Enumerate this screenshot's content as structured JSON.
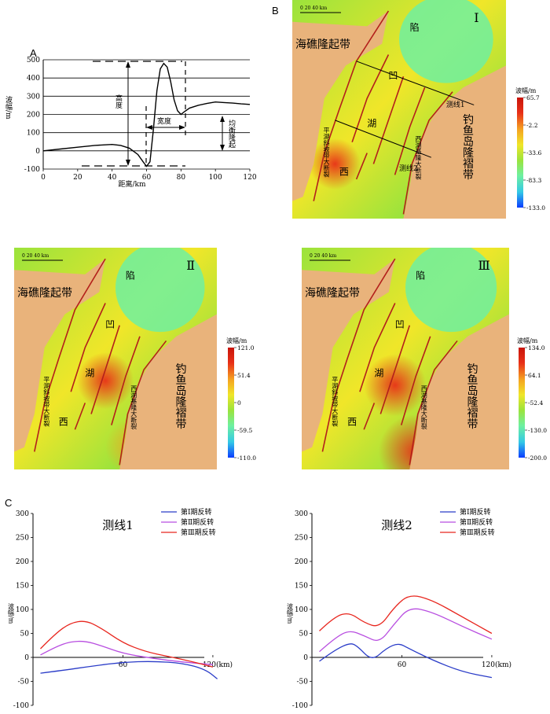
{
  "panel_labels": {
    "a": "A",
    "b": "B",
    "c": "C"
  },
  "panel_a": {
    "ylabel": "波幅/m",
    "xlabel": "距离/km",
    "yticks": [
      "500",
      "400",
      "300",
      "200",
      "100",
      "0",
      "-100"
    ],
    "xticks": [
      "0",
      "20",
      "40",
      "60",
      "80",
      "100",
      "120"
    ],
    "ann_height": "高度",
    "ann_width": "宽度",
    "ann_uplift": "均衡隆起"
  },
  "colorscale": [
    "#0a3cff",
    "#33c8e6",
    "#6ef0a0",
    "#9be33c",
    "#f0e629",
    "#f5a321",
    "#e83018",
    "#c8140a"
  ],
  "land_color": "#e9b37b",
  "fault_color": "#b3201b",
  "maps": {
    "m1": {
      "roman": "Ⅰ",
      "scale": "0   20   40 km",
      "haijiao": "海礁隆起带",
      "diaoyu": "钓鱼岛隆褶带",
      "xian": "陷",
      "ao": "凹",
      "hu": "湖",
      "xi": "西",
      "pinghu": "平湖斜坡带大断裂",
      "xihu": "西湖基隆大断裂",
      "line1": "测线1",
      "line2": "测线2",
      "legend_title": "波幅/m",
      "legend_ticks": [
        "65.7",
        "-2.2",
        "-33.6",
        "-83.3",
        "-133.0"
      ]
    },
    "m2": {
      "roman": "Ⅱ",
      "scale": "0   20   40 km",
      "haijiao": "海礁隆起带",
      "diaoyu": "钓鱼岛隆褶带",
      "xian": "陷",
      "ao": "凹",
      "hu": "湖",
      "xi": "西",
      "pinghu": "平湖斜坡带大断裂",
      "xihu": "西湖基隆大断裂",
      "legend_title": "波幅/m",
      "legend_ticks": [
        "121.0",
        "51.4",
        "0",
        "-59.5",
        "-110.0"
      ]
    },
    "m3": {
      "roman": "Ⅲ",
      "scale": "0   20   40 km",
      "haijiao": "海礁隆起带",
      "diaoyu": "钓鱼岛隆褶带",
      "xian": "陷",
      "ao": "凹",
      "hu": "湖",
      "xi": "西",
      "pinghu": "平湖斜坡带大断裂",
      "xihu": "西湖基隆大断裂",
      "legend_title": "波幅/m",
      "legend_ticks": [
        "134.0",
        "64.1",
        "-52.4",
        "-130.0",
        "-200.0"
      ]
    }
  },
  "chart_data": [
    {
      "type": "line",
      "xlabel": "距离/km",
      "ylabel": "波幅/m",
      "ylim": [
        -100,
        500
      ],
      "xlim": [
        0,
        120
      ],
      "yticks": [
        -100,
        0,
        100,
        200,
        300,
        400,
        500
      ],
      "xticks": [
        0,
        20,
        40,
        60,
        80,
        100,
        120
      ],
      "grid": "horizontal",
      "series": [
        {
          "x": [
            0,
            10,
            20,
            30,
            40,
            45,
            50,
            55,
            58,
            60,
            62,
            64,
            66,
            68,
            70,
            72,
            74,
            76,
            78,
            80,
            82,
            85,
            90,
            95,
            100,
            105,
            110,
            115,
            120
          ],
          "y": [
            0,
            10,
            20,
            30,
            35,
            30,
            15,
            -20,
            -60,
            -85,
            -60,
            120,
            330,
            450,
            480,
            460,
            380,
            280,
            220,
            200,
            215,
            235,
            250,
            260,
            268,
            265,
            262,
            258,
            255
          ]
        }
      ]
    },
    {
      "type": "line",
      "title": "测线1",
      "xlabel": "",
      "ylabel": "波幅/m",
      "ylim": [
        -100,
        300
      ],
      "xticks": [
        60,
        120
      ],
      "xtick_label_last": "120(km)",
      "yticks": [
        -100,
        -50,
        0,
        50,
        100,
        150,
        200,
        250,
        300
      ],
      "series": [
        {
          "name": "第Ⅰ期反转",
          "color": "#2a3cc8",
          "x": [
            5,
            20,
            40,
            60,
            80,
            100,
            115,
            123
          ],
          "y": [
            -33,
            -27,
            -18,
            -10,
            -8,
            -12,
            -25,
            -45
          ]
        },
        {
          "name": "第Ⅱ期反转",
          "color": "#b84ee0",
          "x": [
            5,
            15,
            25,
            35,
            45,
            60,
            80,
            100,
            120
          ],
          "y": [
            5,
            22,
            33,
            34,
            25,
            8,
            -2,
            -10,
            -15
          ]
        },
        {
          "name": "第Ⅲ期反转",
          "color": "#e8261e",
          "x": [
            5,
            15,
            25,
            35,
            45,
            60,
            75,
            90,
            105,
            120
          ],
          "y": [
            18,
            50,
            72,
            77,
            62,
            30,
            12,
            2,
            -8,
            -20
          ]
        }
      ]
    },
    {
      "type": "line",
      "title": "测线2",
      "xlabel": "",
      "ylabel": "波幅/m",
      "ylim": [
        -100,
        300
      ],
      "xticks": [
        60,
        120
      ],
      "xtick_label_last": "120(km)",
      "yticks": [
        -100,
        -50,
        0,
        50,
        100,
        150,
        200,
        250,
        300
      ],
      "series": [
        {
          "name": "第Ⅰ期反转",
          "color": "#2a3cc8",
          "x": [
            5,
            15,
            25,
            30,
            40,
            50,
            58,
            65,
            80,
            100,
            120
          ],
          "y": [
            -8,
            15,
            30,
            25,
            -8,
            20,
            30,
            18,
            -5,
            -30,
            -42
          ]
        },
        {
          "name": "第Ⅱ期反转",
          "color": "#b84ee0",
          "x": [
            5,
            15,
            25,
            35,
            45,
            55,
            65,
            80,
            100,
            120
          ],
          "y": [
            12,
            40,
            57,
            45,
            30,
            70,
            105,
            95,
            65,
            38
          ]
        },
        {
          "name": "第Ⅲ期反转",
          "color": "#e8261e",
          "x": [
            5,
            15,
            25,
            35,
            45,
            55,
            65,
            80,
            100,
            120
          ],
          "y": [
            55,
            85,
            94,
            72,
            62,
            105,
            132,
            120,
            85,
            50
          ]
        }
      ]
    }
  ]
}
